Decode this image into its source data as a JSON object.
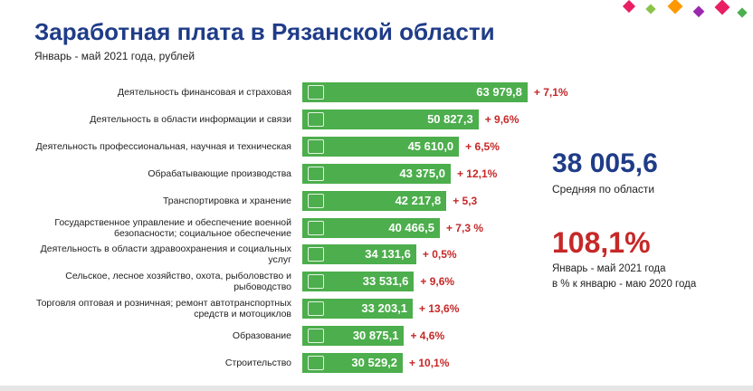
{
  "chart_data": {
    "type": "bar",
    "orientation": "horizontal",
    "title": "Заработная плата в Рязанской области",
    "subtitle": "Январь - май 2021 года, рублей",
    "categories": [
      "Деятельность финансовая и страховая",
      "Деятельность в области информации и связи",
      "Деятельность профессиональная, научная и техническая",
      "Обрабатывающие производства",
      "Транспортировка и хранение",
      "Государственное управление и обеспечение военной безопасности; социальное обеспечение",
      "Деятельность в области здравоохранения и социальных услуг",
      "Сельское, лесное хозяйство, охота, рыболовство и рыбоводство",
      "Торговля оптовая и розничная; ремонт автотранспортных средств и мотоциклов",
      "Образование",
      "Строительство"
    ],
    "values": [
      63979.8,
      50827.3,
      45610.0,
      43375.0,
      42217.8,
      40466.5,
      34131.6,
      33531.6,
      33203.1,
      30875.1,
      30529.2
    ],
    "value_labels": [
      "63 979,8",
      "50 827,3",
      "45 610,0",
      "43 375,0",
      "42 217,8",
      "40 466,5",
      "34 131,6",
      "33 531,6",
      "33 203,1",
      "30 875,1",
      "30 529,2"
    ],
    "change_labels": [
      "+ 7,1%",
      "+ 9,6%",
      "+ 6,5%",
      "+ 12,1%",
      "+ 5,3",
      "+ 7,3 %",
      "+ 0,5%",
      "+ 9,6%",
      "+ 13,6%",
      "+ 4,6%",
      "+ 10,1%"
    ],
    "color": "#4cae4c",
    "change_color": "#c62828",
    "xlim": [
      3600,
      64000
    ],
    "average": {
      "value": "38 005,6",
      "label": "Средняя по области"
    },
    "index": {
      "value": "108,1%",
      "line1": "Январь - май 2021 года",
      "line2": "в % к январю - маю 2020 года"
    }
  }
}
